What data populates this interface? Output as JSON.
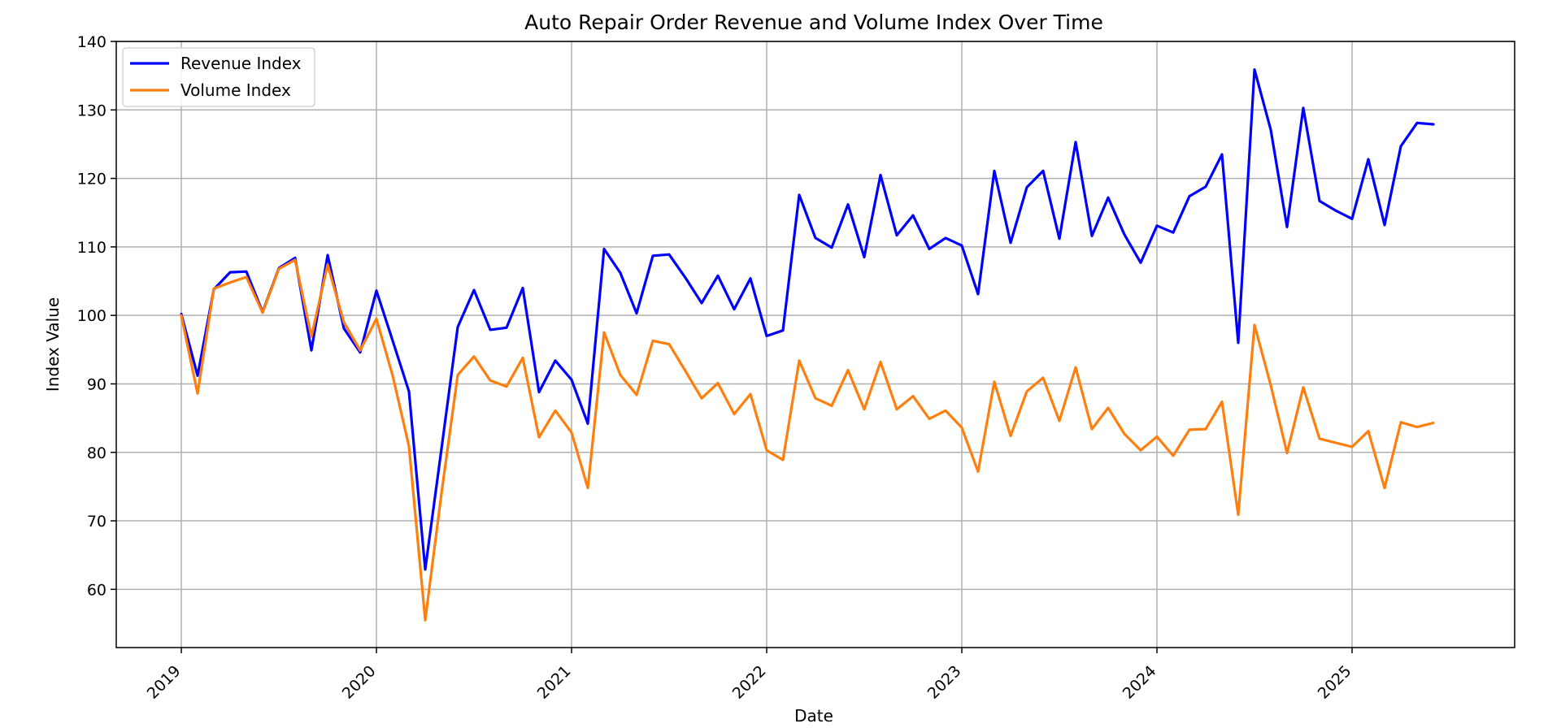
{
  "chart_data": {
    "type": "line",
    "title": "Auto Repair Order Revenue and Volume Index Over Time",
    "xlabel": "Date",
    "ylabel": "Index Value",
    "x_start": "2019-01",
    "x_frequency": "monthly",
    "x_ticks": [
      "2019",
      "2020",
      "2021",
      "2022",
      "2023",
      "2024",
      "2025"
    ],
    "y_ticks": [
      60,
      70,
      80,
      90,
      100,
      110,
      120,
      130,
      140
    ],
    "ylim": [
      51.5,
      140
    ],
    "xlim": [
      "2018-09",
      "2025-11"
    ],
    "grid": true,
    "legend_position": "top-left",
    "series": [
      {
        "name": "Revenue Index",
        "color": "#0000ff",
        "values": [
          100.2,
          91.2,
          103.8,
          106.3,
          106.4,
          100.5,
          106.9,
          108.4,
          94.9,
          108.8,
          98.1,
          94.6,
          103.6,
          96.3,
          88.9,
          62.9,
          80.5,
          98.3,
          103.7,
          97.9,
          98.2,
          104.0,
          88.8,
          93.4,
          90.6,
          84.2,
          109.7,
          106.2,
          100.3,
          108.7,
          108.9,
          105.5,
          101.8,
          105.8,
          100.9,
          105.4,
          97.0,
          97.8,
          117.6,
          111.3,
          109.9,
          116.2,
          108.5,
          120.5,
          111.7,
          114.6,
          109.7,
          111.3,
          110.2,
          103.1,
          121.1,
          110.6,
          118.7,
          121.1,
          111.2,
          125.3,
          111.6,
          117.2,
          111.8,
          107.7,
          113.1,
          112.1,
          117.4,
          118.8,
          123.5,
          96.0,
          135.9,
          127.1,
          112.9,
          130.3,
          116.7,
          115.3,
          114.1,
          122.8,
          113.2,
          124.7,
          128.1,
          127.9
        ]
      },
      {
        "name": "Volume Index",
        "color": "#ff7f0e",
        "values": [
          100.0,
          88.6,
          103.9,
          104.8,
          105.6,
          100.4,
          106.8,
          108.1,
          96.9,
          107.4,
          99.0,
          94.9,
          99.5,
          91.2,
          80.9,
          55.5,
          74.0,
          91.3,
          94.0,
          90.5,
          89.6,
          93.8,
          82.2,
          86.1,
          82.9,
          74.8,
          97.5,
          91.3,
          88.4,
          96.3,
          95.8,
          91.9,
          87.9,
          90.1,
          85.6,
          88.5,
          80.3,
          78.9,
          93.4,
          87.9,
          86.8,
          92.0,
          86.3,
          93.2,
          86.3,
          88.2,
          84.9,
          86.1,
          83.6,
          77.2,
          90.3,
          82.4,
          88.9,
          90.9,
          84.6,
          92.4,
          83.4,
          86.5,
          82.7,
          80.3,
          82.3,
          79.5,
          83.3,
          83.4,
          87.4,
          70.9,
          98.6,
          89.8,
          79.9,
          89.5,
          82.0,
          81.4,
          80.8,
          83.1,
          74.8,
          84.4,
          83.7,
          84.3
        ]
      }
    ]
  }
}
